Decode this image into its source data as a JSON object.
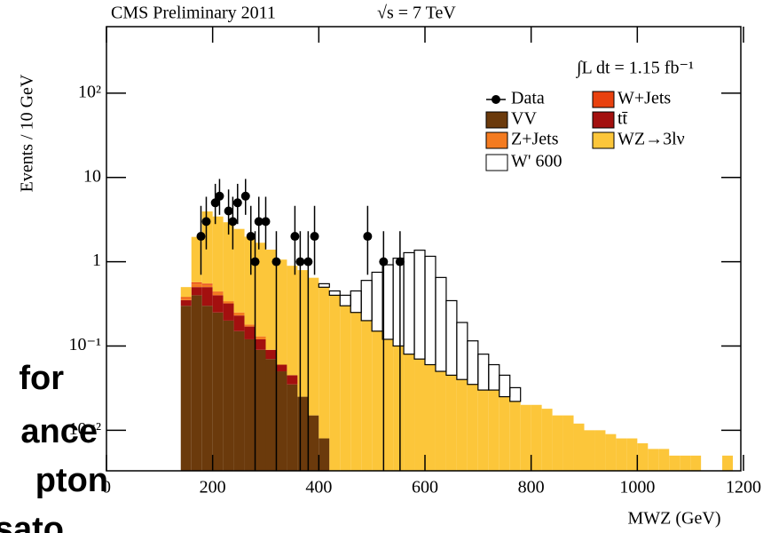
{
  "chart_data": {
    "type": "stacked_histogram",
    "title": "CMS Preliminary 2011",
    "subtitle": "√s = 7 TeV",
    "annotation": "∫L dt = 1.15 fb⁻¹",
    "x_label": "MWZ (GeV)",
    "y_label": "Events / 10 GeV",
    "log_y": true,
    "legend": "upper right",
    "bins": [
      140,
      160,
      180,
      200,
      220,
      240,
      260,
      280,
      300,
      320,
      340,
      360,
      380,
      400,
      420,
      440,
      460,
      480,
      500,
      520,
      540,
      560,
      580,
      600,
      620,
      640,
      660,
      680,
      700,
      720,
      740,
      760,
      780,
      800,
      820,
      840,
      860,
      880,
      900,
      920,
      940,
      960,
      980,
      1000,
      1020,
      1040,
      1060,
      1080,
      1100,
      1120,
      1140,
      1160,
      1180
    ],
    "series": [
      {
        "name": "VV",
        "color": "#6b3a0c",
        "values": [
          0.3,
          0.4,
          0.3,
          0.25,
          0.2,
          0.15,
          0.12,
          0.09,
          0.07,
          0.05,
          0.035,
          0.025,
          0.015,
          0.008,
          0,
          0,
          0,
          0,
          0,
          0,
          0,
          0,
          0,
          0,
          0,
          0,
          0,
          0,
          0,
          0,
          0,
          0,
          0,
          0,
          0,
          0,
          0,
          0,
          0,
          0,
          0,
          0,
          0,
          0,
          0,
          0,
          0,
          0,
          0,
          0,
          0,
          0
        ]
      },
      {
        "name": "tt̄",
        "color": "#a3100f",
        "values": [
          0.05,
          0.1,
          0.2,
          0.15,
          0.12,
          0.08,
          0.05,
          0.03,
          0.02,
          0.01,
          0.01,
          0,
          0,
          0,
          0,
          0,
          0,
          0,
          0,
          0,
          0,
          0,
          0,
          0,
          0,
          0,
          0,
          0,
          0,
          0,
          0,
          0,
          0,
          0,
          0,
          0,
          0,
          0,
          0,
          0,
          0,
          0,
          0,
          0,
          0,
          0,
          0,
          0,
          0,
          0,
          0,
          0
        ]
      },
      {
        "name": "Z+Jets",
        "color": "#f47b20",
        "values": [
          0.02,
          0.05,
          0.03,
          0.03,
          0.02,
          0.02,
          0.01,
          0.01,
          0,
          0,
          0,
          0,
          0,
          0,
          0,
          0,
          0,
          0,
          0,
          0,
          0,
          0,
          0,
          0,
          0,
          0,
          0,
          0,
          0,
          0,
          0,
          0,
          0,
          0,
          0,
          0,
          0,
          0,
          0,
          0,
          0,
          0,
          0,
          0,
          0,
          0,
          0,
          0,
          0,
          0,
          0,
          0
        ]
      },
      {
        "name": "W+Jets",
        "color": "#e8410f",
        "values": [
          0.01,
          0.02,
          0.02,
          0.01,
          0,
          0,
          0,
          0,
          0,
          0,
          0,
          0,
          0,
          0,
          0,
          0,
          0,
          0,
          0,
          0,
          0,
          0,
          0,
          0,
          0,
          0,
          0,
          0,
          0,
          0,
          0,
          0,
          0,
          0,
          0,
          0,
          0,
          0,
          0,
          0,
          0,
          0,
          0,
          0,
          0,
          0,
          0,
          0,
          0,
          0,
          0,
          0
        ]
      },
      {
        "name": "WZ→3lν",
        "color": "#fcc63a",
        "values": [
          0.12,
          1.4,
          3.4,
          3.0,
          2.6,
          2.2,
          1.8,
          1.55,
          1.3,
          1.0,
          0.85,
          0.77,
          0.63,
          0.49,
          0.4,
          0.3,
          0.25,
          0.2,
          0.15,
          0.12,
          0.1,
          0.08,
          0.07,
          0.06,
          0.05,
          0.045,
          0.04,
          0.035,
          0.03,
          0.03,
          0.025,
          0.022,
          0.02,
          0.02,
          0.018,
          0.015,
          0.015,
          0.012,
          0.01,
          0.01,
          0.009,
          0.008,
          0.008,
          0.007,
          0.006,
          0.006,
          0.005,
          0.005,
          0.005,
          0,
          0,
          0.005
        ]
      },
      {
        "name": "W' 600",
        "color": "#000000",
        "outline": true,
        "values": [
          0,
          0,
          0,
          0,
          0,
          0,
          0,
          0,
          0,
          0,
          0,
          0,
          0,
          0.05,
          0.05,
          0.1,
          0.2,
          0.4,
          0.6,
          0.8,
          1.0,
          1.2,
          1.3,
          1.1,
          0.6,
          0.3,
          0.15,
          0.08,
          0.05,
          0.03,
          0.02,
          0.01,
          0,
          0,
          0,
          0,
          0,
          0,
          0,
          0,
          0,
          0,
          0,
          0,
          0,
          0,
          0,
          0,
          0,
          0,
          0,
          0
        ]
      }
    ],
    "data_points": {
      "name": "Data",
      "color": "#000000",
      "x": [
        178,
        188,
        205,
        213,
        230,
        238,
        247,
        262,
        272,
        280,
        287,
        300,
        320,
        355,
        365,
        380,
        392,
        492,
        522,
        553
      ],
      "values": [
        2,
        3,
        5,
        6,
        4,
        3,
        5,
        6,
        2,
        1,
        3,
        3,
        1,
        2,
        1,
        1,
        2,
        2,
        1,
        1
      ],
      "yerr_low": [
        1.3,
        1.6,
        2.2,
        2.4,
        1.9,
        1.6,
        2.2,
        2.4,
        1.3,
        1,
        1.6,
        1.6,
        1,
        1.3,
        1,
        1,
        1.3,
        1.3,
        1,
        1
      ],
      "yerr_high": [
        2.6,
        2.9,
        3.4,
        3.6,
        3.2,
        2.9,
        3.4,
        3.6,
        2.6,
        1.3,
        2.9,
        2.9,
        1.3,
        2.6,
        1.3,
        1.3,
        2.6,
        2.6,
        1.3,
        1.3
      ]
    },
    "xlim": [
      0,
      1195
    ],
    "xticks": [
      0,
      200,
      400,
      600,
      800,
      1000,
      1200
    ],
    "ylim": [
      0.0033,
      616
    ],
    "yticks": [
      {
        "value": 0.01,
        "label": "10⁻²"
      },
      {
        "value": 0.1,
        "label": "10⁻¹"
      },
      1,
      10,
      {
        "value": 100,
        "label": "10²"
      }
    ]
  },
  "overlay_text": [
    "for",
    "ance",
    "pton",
    "sato"
  ]
}
